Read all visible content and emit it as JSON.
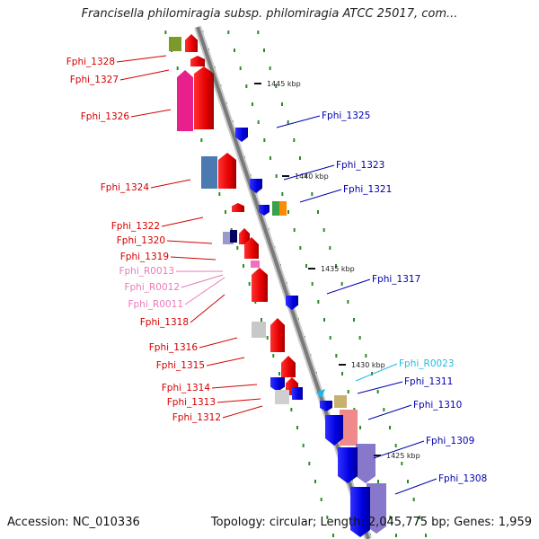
{
  "title": "Francisella philomiragia subsp. philomiragia ATCC 25017, com...",
  "footer": {
    "accession": "Accession: NC_010336",
    "summary": "Topology: circular; Length: 2,045,775 bp; Genes: 1,959"
  },
  "colors": {
    "backbone": "#8a8a8a",
    "left_label": "#d40000",
    "right_label": "#0000b0",
    "rna_left_label": "#e87bb8",
    "rna_right_label": "#26b8e0",
    "tick_dots": "#2a8a2a"
  },
  "scale_labels": [
    "1445 kbp",
    "1440 kbp",
    "1435 kbp",
    "1430 kbp",
    "1425 kbp"
  ],
  "left_labels": [
    {
      "text": "Fphi_1328",
      "kind": "gene"
    },
    {
      "text": "Fphi_1327",
      "kind": "gene"
    },
    {
      "text": "Fphi_1326",
      "kind": "gene"
    },
    {
      "text": "Fphi_1324",
      "kind": "gene"
    },
    {
      "text": "Fphi_1322",
      "kind": "gene"
    },
    {
      "text": "Fphi_1320",
      "kind": "gene"
    },
    {
      "text": "Fphi_1319",
      "kind": "gene"
    },
    {
      "text": "Fphi_R0013",
      "kind": "rna"
    },
    {
      "text": "Fphi_R0012",
      "kind": "rna"
    },
    {
      "text": "Fphi_R0011",
      "kind": "rna"
    },
    {
      "text": "Fphi_1318",
      "kind": "gene"
    },
    {
      "text": "Fphi_1316",
      "kind": "gene"
    },
    {
      "text": "Fphi_1315",
      "kind": "gene"
    },
    {
      "text": "Fphi_1314",
      "kind": "gene"
    },
    {
      "text": "Fphi_1313",
      "kind": "gene"
    },
    {
      "text": "Fphi_1312",
      "kind": "gene"
    }
  ],
  "right_labels": [
    {
      "text": "Fphi_1325",
      "kind": "gene"
    },
    {
      "text": "Fphi_1323",
      "kind": "gene"
    },
    {
      "text": "Fphi_1321",
      "kind": "gene"
    },
    {
      "text": "Fphi_1317",
      "kind": "gene"
    },
    {
      "text": "Fphi_R0023",
      "kind": "rna"
    },
    {
      "text": "Fphi_1311",
      "kind": "gene"
    },
    {
      "text": "Fphi_1310",
      "kind": "gene"
    },
    {
      "text": "Fphi_1309",
      "kind": "gene"
    },
    {
      "text": "Fphi_1308",
      "kind": "gene"
    }
  ]
}
